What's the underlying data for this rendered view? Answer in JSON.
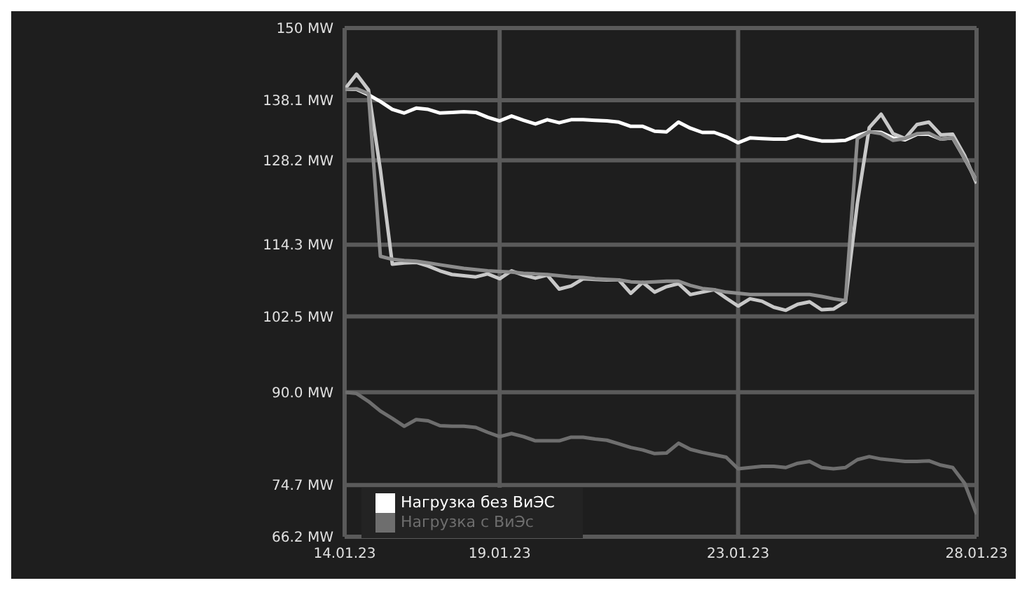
{
  "chart_data": {
    "type": "line",
    "categories": [
      "14.01.23",
      null,
      null,
      null,
      null,
      null,
      null,
      null,
      null,
      null,
      null,
      null,
      null,
      "19.01.23",
      null,
      null,
      null,
      null,
      null,
      null,
      null,
      null,
      null,
      null,
      null,
      null,
      null,
      null,
      null,
      null,
      null,
      null,
      null,
      "23.01.23",
      null,
      null,
      null,
      null,
      null,
      null,
      null,
      null,
      null,
      null,
      null,
      null,
      null,
      null,
      null,
      null,
      null,
      null,
      null,
      "28.01.23"
    ],
    "ylim": [
      66.2,
      150
    ],
    "yticks": [
      {
        "value": 66.2,
        "label": "66.2 MW"
      },
      {
        "value": 74.7,
        "label": "74.7 MW"
      },
      {
        "value": 90.0,
        "label": "90.0 MW"
      },
      {
        "value": 102.5,
        "label": "102.5 MW"
      },
      {
        "value": 114.3,
        "label": "114.3 MW"
      },
      {
        "value": 128.2,
        "label": "128.2 MW"
      },
      {
        "value": 138.1,
        "label": "138.1 MW"
      },
      {
        "value": 150,
        "label": "150 MW"
      }
    ],
    "grid": true,
    "legend": "bottom",
    "marker": "none",
    "line_style": "solid",
    "series": [
      {
        "name": "Нагрузка без ВиЭС",
        "color": "#ffffff",
        "values": [
          139.9,
          139.9,
          139.0,
          137.9,
          136.6,
          136.0,
          136.8,
          136.6,
          136.0,
          136.1,
          136.2,
          136.1,
          135.3,
          134.7,
          135.5,
          134.8,
          134.2,
          134.9,
          134.4,
          134.9,
          134.9,
          134.8,
          134.7,
          134.5,
          133.8,
          133.8,
          133.0,
          132.9,
          134.5,
          133.5,
          132.8,
          132.8,
          132.1,
          131.1,
          131.9,
          131.8,
          131.7,
          131.7,
          132.3,
          131.8,
          131.4,
          131.4,
          131.5,
          132.3,
          132.9,
          132.8,
          131.9,
          131.6,
          132.5,
          132.5,
          131.7,
          131.9,
          128.5,
          124.8
        ]
      },
      {
        "color": "#c8c8c8",
        "values": [
          139.9,
          142.4,
          139.8,
          126.6,
          111.1,
          111.3,
          111.4,
          110.8,
          110.0,
          109.4,
          109.2,
          109.0,
          109.5,
          108.7,
          110.0,
          109.3,
          108.8,
          109.3,
          107.0,
          107.5,
          108.7,
          108.6,
          108.5,
          108.5,
          106.3,
          108.1,
          106.5,
          107.4,
          107.9,
          106.1,
          106.5,
          106.9,
          105.5,
          104.2,
          105.4,
          105.0,
          104.0,
          103.5,
          104.5,
          104.9,
          103.6,
          103.7,
          104.9,
          121.1,
          133.6,
          135.8,
          132.6,
          131.8,
          134.1,
          134.5,
          132.4,
          132.5,
          129.0,
          124.4
        ]
      },
      {
        "color": "#8c8c8c",
        "values": [
          139.9,
          140.0,
          139.2,
          112.4,
          111.9,
          111.7,
          111.6,
          111.3,
          111.0,
          110.7,
          110.4,
          110.2,
          110.0,
          109.9,
          109.8,
          109.6,
          109.5,
          109.4,
          109.2,
          109.0,
          108.9,
          108.7,
          108.6,
          108.5,
          108.2,
          108.1,
          108.2,
          108.3,
          108.3,
          107.6,
          107.1,
          106.9,
          106.5,
          106.3,
          106.1,
          106.1,
          106.1,
          106.1,
          106.1,
          106.1,
          105.8,
          105.4,
          105.1,
          131.8,
          132.9,
          132.6,
          131.5,
          131.8,
          132.6,
          132.7,
          131.7,
          131.9,
          128.5,
          124.8
        ]
      },
      {
        "name": "Нагрузка с ВиЭс",
        "color": "#6e6e6e",
        "values": [
          90.0,
          89.8,
          88.5,
          86.9,
          85.7,
          84.4,
          85.5,
          85.3,
          84.5,
          84.4,
          84.4,
          84.2,
          83.4,
          82.7,
          83.2,
          82.7,
          82.0,
          82.0,
          82.0,
          82.6,
          82.6,
          82.3,
          82.1,
          81.5,
          80.9,
          80.5,
          79.9,
          80.0,
          81.6,
          80.6,
          80.1,
          79.7,
          79.3,
          77.4,
          77.6,
          77.8,
          77.8,
          77.6,
          78.3,
          78.6,
          77.6,
          77.4,
          77.6,
          78.9,
          79.4,
          79.0,
          78.8,
          78.6,
          78.6,
          78.7,
          78.0,
          77.6,
          75.0,
          69.9
        ]
      }
    ]
  }
}
